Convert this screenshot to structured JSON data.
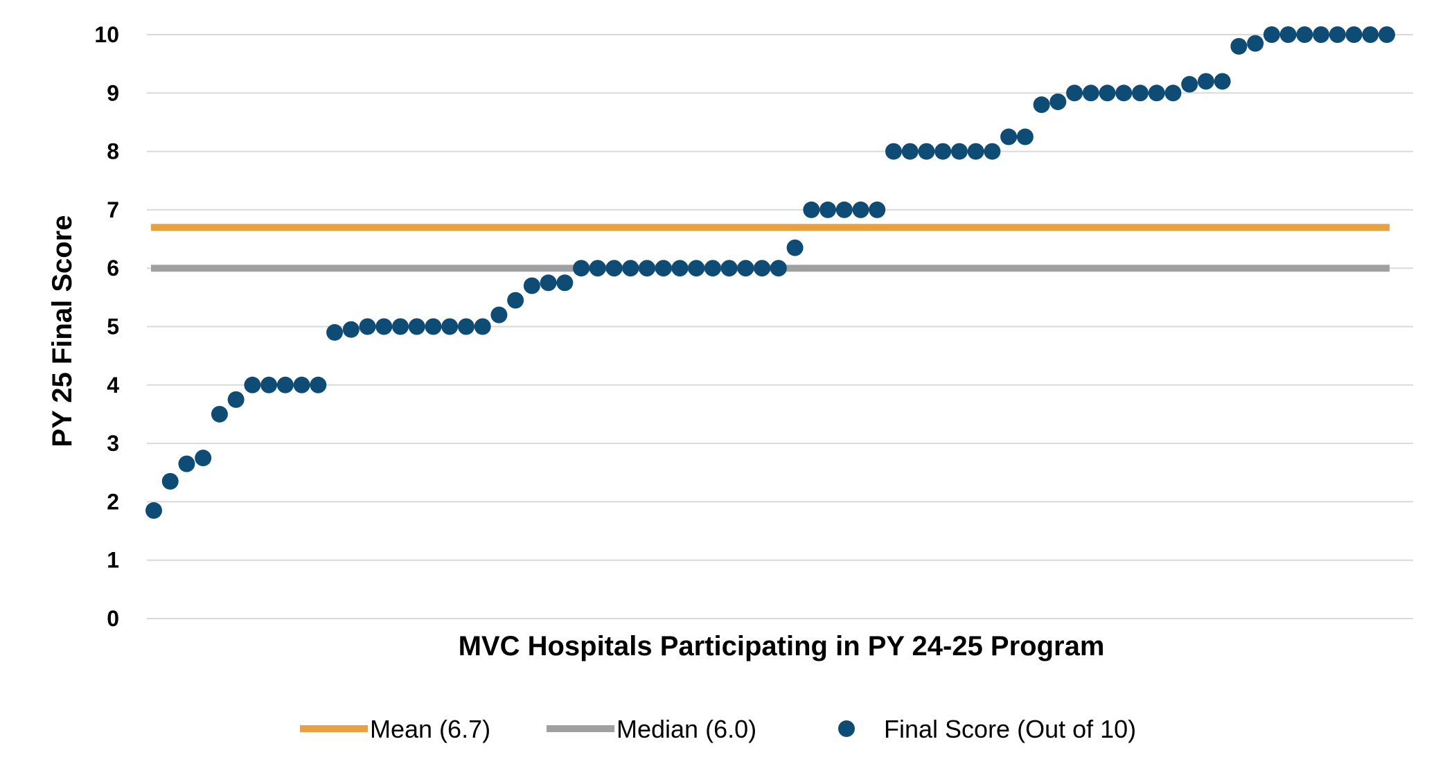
{
  "chart_data": {
    "type": "scatter",
    "xlabel": "MVC Hospitals Participating in PY 24-25 Program",
    "ylabel": "PY 25 Final Score",
    "ylim": [
      0,
      10
    ],
    "yticks": [
      "0",
      "1",
      "2",
      "3",
      "4",
      "5",
      "6",
      "7",
      "8",
      "9",
      "10"
    ],
    "grid": true,
    "legend_position": "bottom",
    "series": [
      {
        "name": "Final Score (Out of 10)",
        "kind": "points",
        "color": "#0f4c75",
        "values": [
          1.85,
          2.35,
          2.65,
          2.75,
          3.5,
          3.75,
          4.0,
          4.0,
          4.0,
          4.0,
          4.0,
          4.9,
          4.95,
          5.0,
          5.0,
          5.0,
          5.0,
          5.0,
          5.0,
          5.0,
          5.0,
          5.2,
          5.45,
          5.7,
          5.75,
          5.75,
          6.0,
          6.0,
          6.0,
          6.0,
          6.0,
          6.0,
          6.0,
          6.0,
          6.0,
          6.0,
          6.0,
          6.0,
          6.0,
          6.35,
          7.0,
          7.0,
          7.0,
          7.0,
          7.0,
          8.0,
          8.0,
          8.0,
          8.0,
          8.0,
          8.0,
          8.0,
          8.25,
          8.25,
          8.8,
          8.85,
          9.0,
          9.0,
          9.0,
          9.0,
          9.0,
          9.0,
          9.0,
          9.15,
          9.2,
          9.2,
          9.8,
          9.85,
          10.0,
          10.0,
          10.0,
          10.0,
          10.0,
          10.0,
          10.0,
          10.0
        ]
      },
      {
        "name": "Mean (6.7)",
        "kind": "hline",
        "value": 6.7,
        "color": "#e8a040"
      },
      {
        "name": "Median (6.0)",
        "kind": "hline",
        "value": 6.0,
        "color": "#a0a0a0"
      }
    ],
    "legend": [
      {
        "label": "Mean (6.7)",
        "kind": "line",
        "color": "#e8a040"
      },
      {
        "label": "Median (6.0)",
        "kind": "line",
        "color": "#a0a0a0"
      },
      {
        "label": "Final Score (Out of 10)",
        "kind": "marker",
        "color": "#0f4c75"
      }
    ]
  }
}
